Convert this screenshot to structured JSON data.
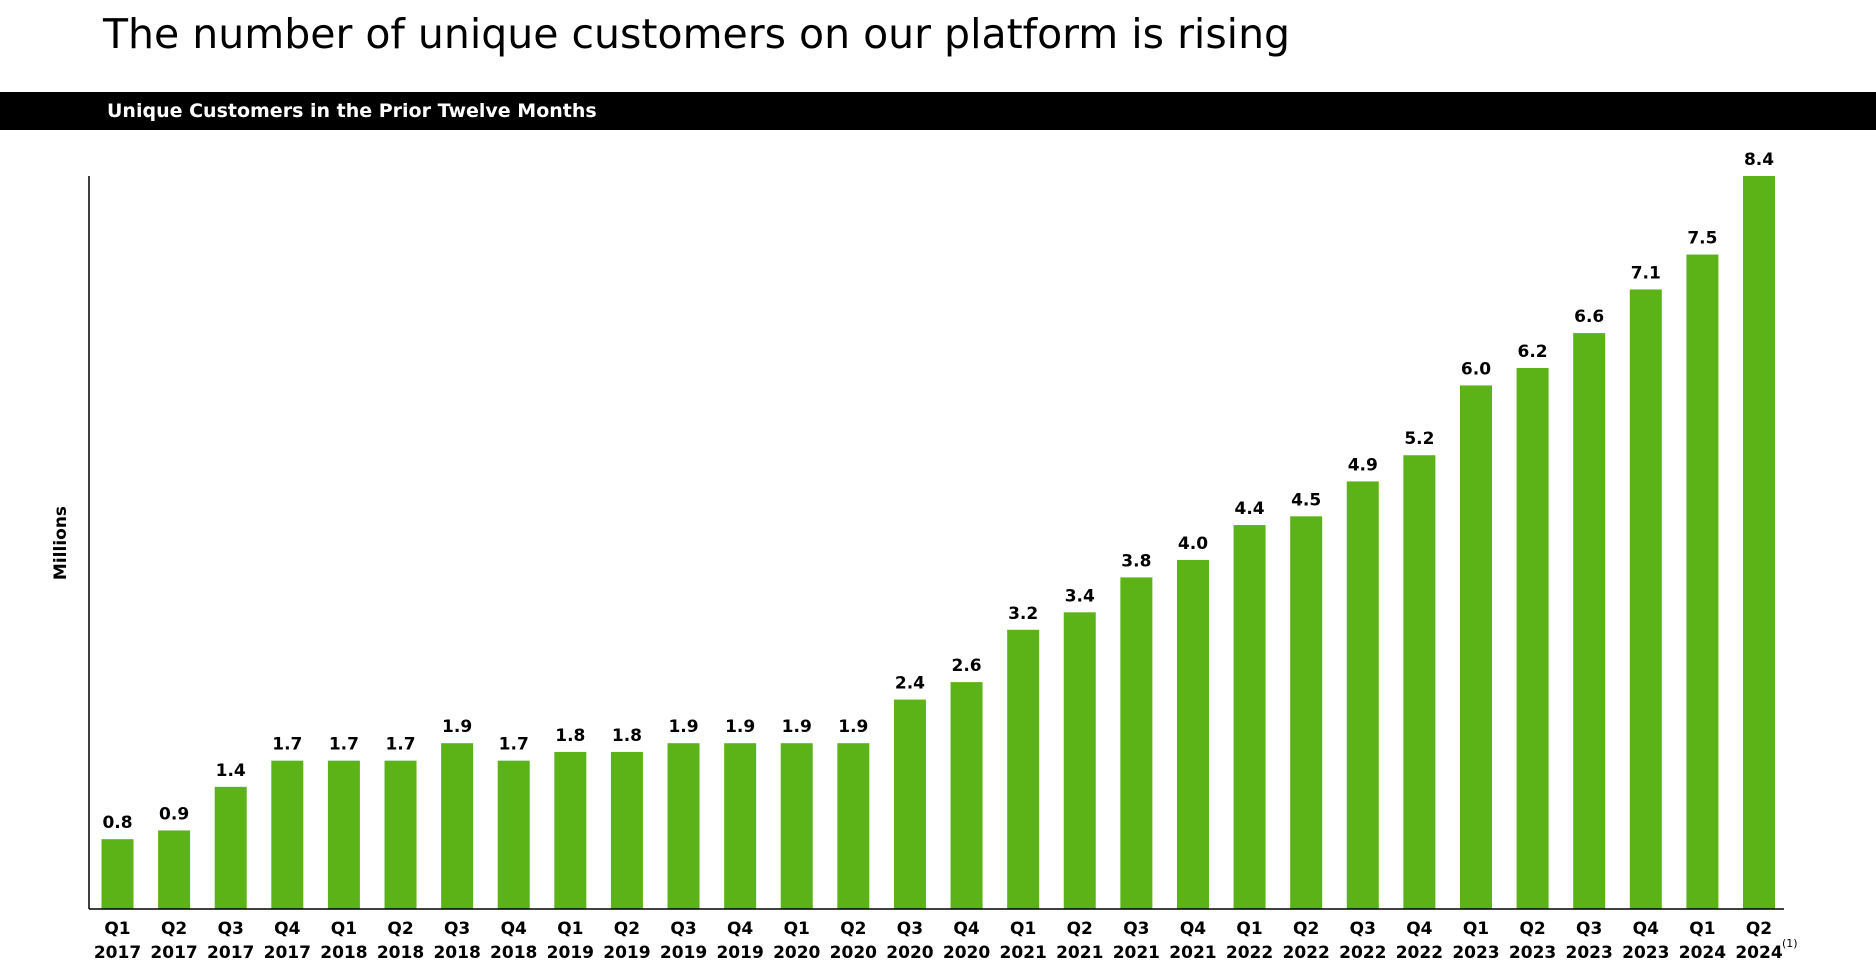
{
  "page": {
    "title": "The number of unique customers on our platform is rising",
    "banner": "Unique Customers in the Prior Twelve Months"
  },
  "colors": {
    "bar": "#5cb318",
    "axis": "#000000",
    "banner_bg": "#000000",
    "banner_text": "#ffffff"
  },
  "chart_data": {
    "type": "bar",
    "title": "Unique Customers in the Prior Twelve Months",
    "xlabel": "",
    "ylabel": "Millions",
    "ylim": [
      0,
      8.4
    ],
    "grid": false,
    "legend": "none",
    "categories": [
      [
        "Q1",
        "2017"
      ],
      [
        "Q2",
        "2017"
      ],
      [
        "Q3",
        "2017"
      ],
      [
        "Q4",
        "2017"
      ],
      [
        "Q1",
        "2018"
      ],
      [
        "Q2",
        "2018"
      ],
      [
        "Q3",
        "2018"
      ],
      [
        "Q4",
        "2018"
      ],
      [
        "Q1",
        "2019"
      ],
      [
        "Q2",
        "2019"
      ],
      [
        "Q3",
        "2019"
      ],
      [
        "Q4",
        "2019"
      ],
      [
        "Q1",
        "2020"
      ],
      [
        "Q2",
        "2020"
      ],
      [
        "Q3",
        "2020"
      ],
      [
        "Q4",
        "2020"
      ],
      [
        "Q1",
        "2021"
      ],
      [
        "Q2",
        "2021"
      ],
      [
        "Q3",
        "2021"
      ],
      [
        "Q4",
        "2021"
      ],
      [
        "Q1",
        "2022"
      ],
      [
        "Q2",
        "2022"
      ],
      [
        "Q3",
        "2022"
      ],
      [
        "Q4",
        "2022"
      ],
      [
        "Q1",
        "2023"
      ],
      [
        "Q2",
        "2023"
      ],
      [
        "Q3",
        "2023"
      ],
      [
        "Q4",
        "2023"
      ],
      [
        "Q1",
        "2024"
      ],
      [
        "Q2",
        "2024"
      ]
    ],
    "values": [
      0.8,
      0.9,
      1.4,
      1.7,
      1.7,
      1.7,
      1.9,
      1.7,
      1.8,
      1.8,
      1.9,
      1.9,
      1.9,
      1.9,
      2.4,
      2.6,
      3.2,
      3.4,
      3.8,
      4.0,
      4.4,
      4.5,
      4.9,
      5.2,
      6.0,
      6.2,
      6.6,
      7.1,
      7.5,
      8.4
    ],
    "labels": [
      "0.8",
      "0.9",
      "1.4",
      "1.7",
      "1.7",
      "1.7",
      "1.9",
      "1.7",
      "1.8",
      "1.8",
      "1.9",
      "1.9",
      "1.9",
      "1.9",
      "2.4",
      "2.6",
      "3.2",
      "3.4",
      "3.8",
      "4.0",
      "4.4",
      "4.5",
      "4.9",
      "5.2",
      "6.0",
      "6.2",
      "6.6",
      "7.1",
      "7.5",
      "8.4"
    ],
    "footnote": "(1)"
  }
}
